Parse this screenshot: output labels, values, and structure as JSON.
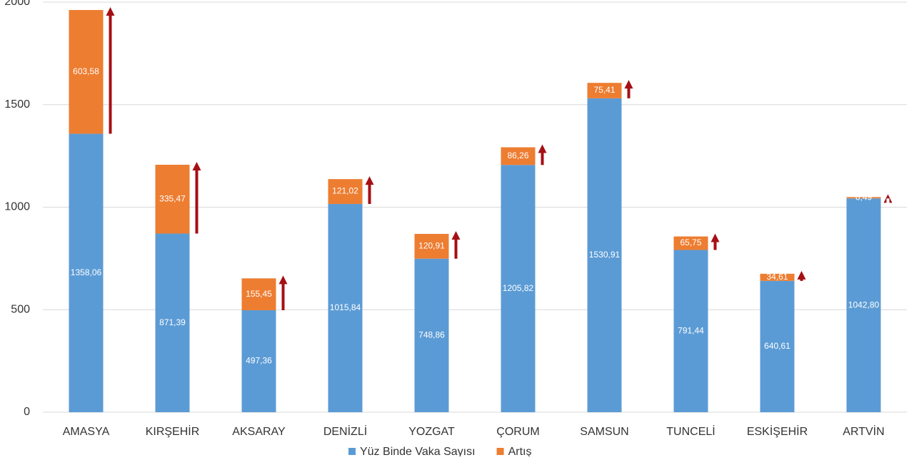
{
  "chart_data": {
    "type": "stacked_bar",
    "categories": [
      "AMASYA",
      "KIRŞEHİR",
      "AKSARAY",
      "DENİZLİ",
      "YOZGAT",
      "ÇORUM",
      "SAMSUN",
      "TUNCELİ",
      "ESKİŞEHİR",
      "ARTVİN"
    ],
    "series": [
      {
        "name": "Yüz Binde Vaka Sayısı",
        "color": "#5b9bd5",
        "values": [
          1358.06,
          871.39,
          497.36,
          1015.84,
          748.86,
          1205.82,
          1530.91,
          791.44,
          640.61,
          1042.8
        ],
        "value_labels": [
          "1358,06",
          "871,39",
          "497,36",
          "1015,84",
          "748,86",
          "1205,82",
          "1530,91",
          "791,44",
          "640,61",
          "1042,80"
        ]
      },
      {
        "name": "Artış",
        "color": "#ed7d31",
        "values": [
          603.58,
          335.47,
          155.45,
          121.02,
          120.91,
          86.26,
          75.41,
          65.75,
          34.61,
          6.49
        ],
        "value_labels": [
          "603,58",
          "335,47",
          "155,45",
          "121,02",
          "120,91",
          "86,26",
          "75,41",
          "65,75",
          "34,61",
          "6,49"
        ]
      }
    ],
    "arrow_color": "#a50f15",
    "ylim": [
      0,
      2000
    ],
    "yticks": [
      0,
      500,
      1000,
      1500,
      2000
    ],
    "grid": true
  }
}
